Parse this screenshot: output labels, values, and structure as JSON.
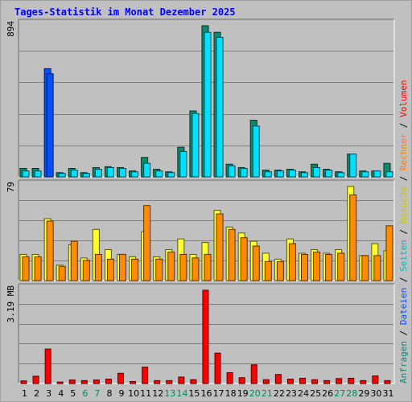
{
  "chart_data": {
    "type": "bar",
    "title": "Tages-Statistik im Monat Dezember 2025",
    "categories": [
      "1",
      "2",
      "3",
      "4",
      "5",
      "6",
      "7",
      "8",
      "9",
      "10",
      "11",
      "12",
      "13",
      "14",
      "15",
      "16",
      "17",
      "18",
      "19",
      "20",
      "21",
      "22",
      "23",
      "24",
      "25",
      "26",
      "27",
      "28",
      "29",
      "30",
      "31"
    ],
    "weekend_days": [
      "6",
      "7",
      "13",
      "14",
      "20",
      "21",
      "27",
      "28"
    ],
    "grid": true,
    "panels": [
      {
        "name": "requests",
        "ymax_label": "894",
        "ymax": 894,
        "series": [
          {
            "name": "Anfragen",
            "color": "#0e8a6b",
            "values": [
              50,
              50,
              640,
              25,
              50,
              25,
              55,
              60,
              55,
              35,
              115,
              45,
              30,
              175,
              390,
              894,
              855,
              75,
              55,
              335,
              40,
              40,
              45,
              30,
              75,
              45,
              30,
              135,
              35,
              35,
              80
            ]
          },
          {
            "name": "Dateien",
            "color": "#00e0ff",
            "values": [
              35,
              35,
              610,
              20,
              40,
              20,
              45,
              55,
              50,
              30,
              80,
              35,
              25,
              150,
              375,
              855,
              825,
              65,
              50,
              300,
              30,
              35,
              40,
              25,
              55,
              40,
              25,
              135,
              30,
              35,
              30
            ]
          }
        ]
      },
      {
        "name": "pages",
        "ymax_label": "79",
        "ymax": 79,
        "series": [
          {
            "name": "Seiten",
            "color": "#ffff30",
            "values": [
              22,
              22,
              52,
              13,
              30,
              19,
              43,
              26,
              22,
              20,
              41,
              20,
              26,
              35,
              22,
              32,
              59,
              45,
              40,
              33,
              23,
              18,
              35,
              23,
              26,
              23,
              26,
              79,
              21,
              31,
              25
            ]
          },
          {
            "name": "Besuche",
            "color": "#ff8c00",
            "values": [
              20,
              20,
              50,
              12,
              33,
              17,
              22,
              18,
              22,
              18,
              63,
              18,
              24,
              22,
              19,
              22,
              56,
              43,
              36,
              29,
              16,
              16,
              31,
              22,
              24,
              22,
              23,
              72,
              21,
              21,
              46
            ]
          }
        ]
      },
      {
        "name": "volume",
        "ymax_label": "3.19 MB",
        "ymax": 3.19,
        "series": [
          {
            "name": "Volumen",
            "color": "#ff0000",
            "values": [
              0.09,
              0.25,
              1.18,
              0.05,
              0.12,
              0.1,
              0.12,
              0.15,
              0.35,
              0.07,
              0.56,
              0.1,
              0.1,
              0.22,
              0.13,
              3.19,
              1.04,
              0.37,
              0.2,
              0.64,
              0.13,
              0.31,
              0.15,
              0.18,
              0.13,
              0.1,
              0.17,
              0.18,
              0.1,
              0.26,
              0.1
            ]
          }
        ]
      }
    ],
    "legend_side": [
      {
        "text": "Anfragen",
        "color": "#0e8a6b"
      },
      {
        "text": "Dateien",
        "color": "#0050ff"
      },
      {
        "text": "Seiten",
        "color": "#00b7c8"
      },
      {
        "text": "Besuche",
        "color": "#c8c800"
      },
      {
        "text": "Rechner",
        "color": "#ff7f00"
      },
      {
        "text": "Volumen",
        "color": "#ff0000"
      }
    ],
    "legend_separator": "/",
    "highlight": {
      "day": "3",
      "panel": "requests",
      "color": "#0050ff"
    }
  }
}
